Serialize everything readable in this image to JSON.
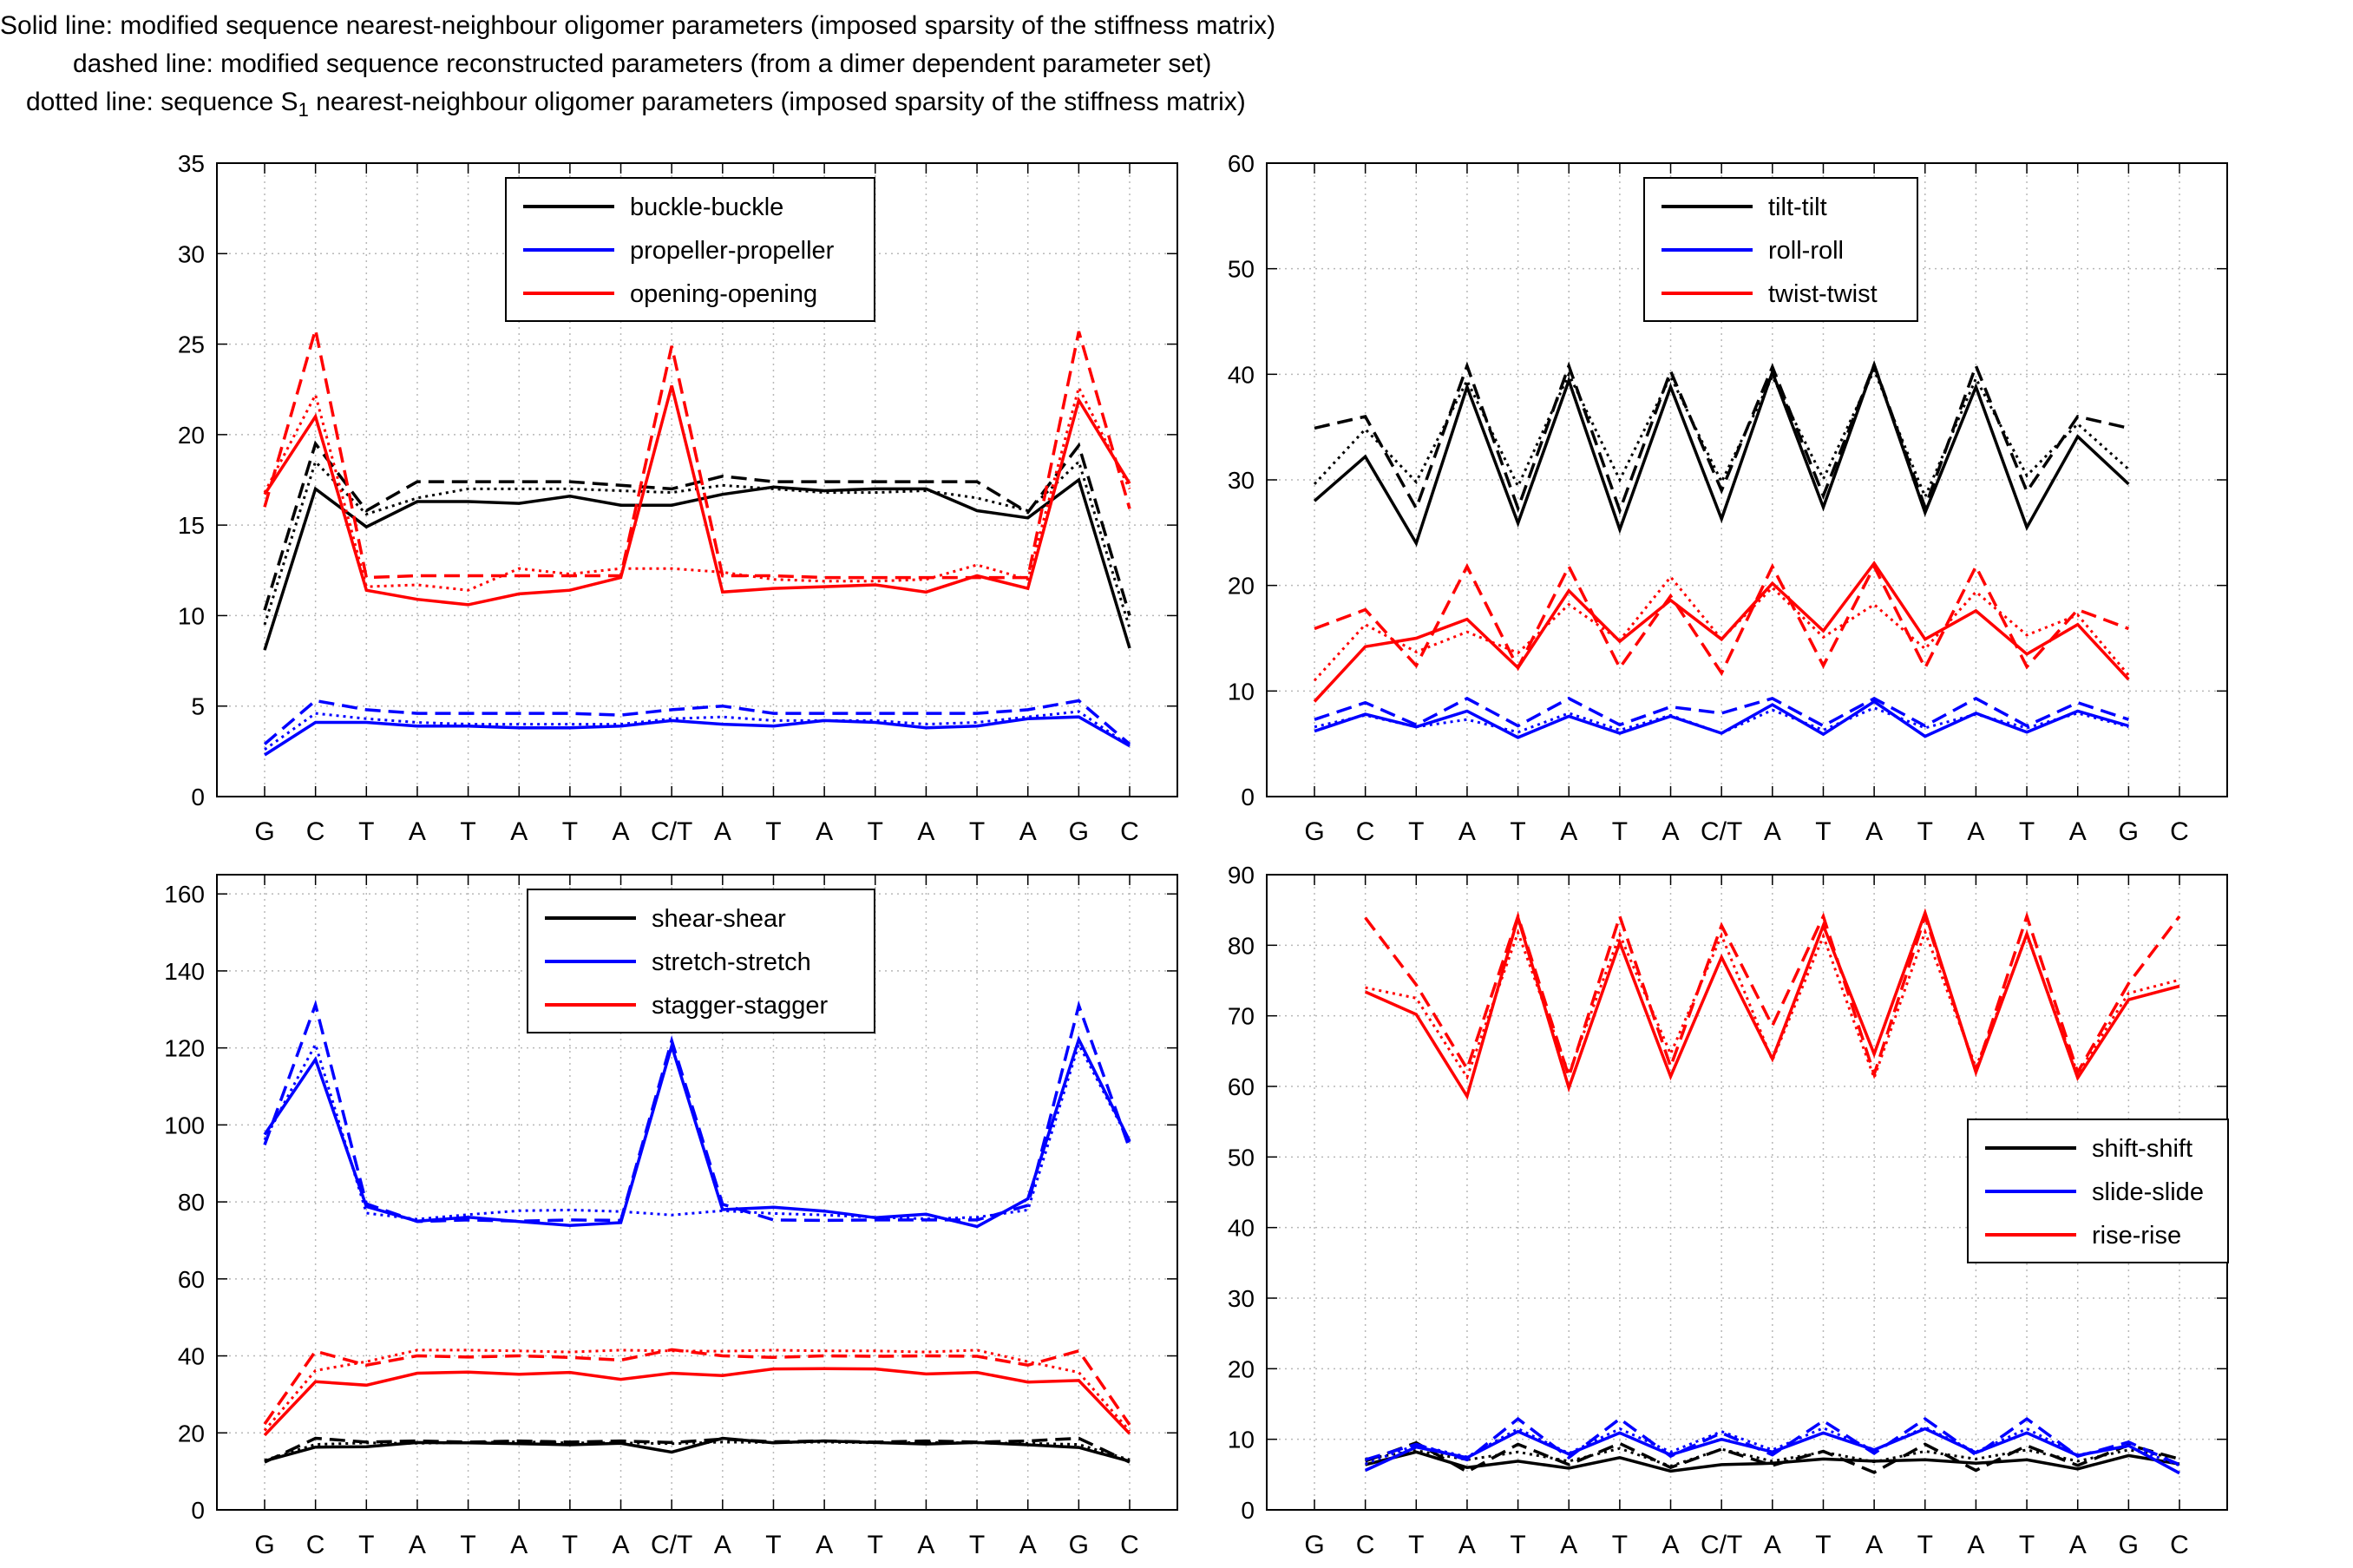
{
  "notes": {
    "solid": "Solid line: modified sequence nearest-neighbour oligomer parameters (imposed sparsity of the stiffness matrix)",
    "dashed": "dashed line: modified sequence reconstructed parameters (from a dimer dependent parameter set)",
    "dotted_before_sub": "dotted line: sequence S",
    "dotted_sub": "1",
    "dotted_after_sub": " nearest-neighbour oligomer parameters (imposed sparsity of the stiffness matrix)"
  },
  "colors": {
    "black": "#000000",
    "blue": "#0000ff",
    "red": "#ff0000",
    "grid": "#b8b8b8"
  },
  "chart_data": [
    {
      "type": "line",
      "categories": [
        "G",
        "C",
        "T",
        "A",
        "T",
        "A",
        "T",
        "A",
        "C/T",
        "A",
        "T",
        "A",
        "T",
        "A",
        "T",
        "A",
        "G",
        "C"
      ],
      "ylim": [
        0,
        35
      ],
      "yticks": [
        0,
        5,
        10,
        15,
        20,
        25,
        30,
        35
      ],
      "grid": true,
      "legend_position": "top-center",
      "legend": [
        "buckle-buckle",
        "propeller-propeller",
        "opening-opening"
      ],
      "series": [
        {
          "name": "buckle-buckle",
          "color": "black",
          "style": "solid",
          "values": [
            8.1,
            17.0,
            14.9,
            16.3,
            16.3,
            16.2,
            16.6,
            16.1,
            16.1,
            16.7,
            17.1,
            16.9,
            17.0,
            17.0,
            15.8,
            15.4,
            17.5,
            8.2
          ]
        },
        {
          "name": "buckle-buckle",
          "color": "black",
          "style": "dashed",
          "values": [
            10.3,
            19.5,
            15.8,
            17.4,
            17.4,
            17.4,
            17.4,
            17.2,
            17.0,
            17.7,
            17.4,
            17.4,
            17.4,
            17.4,
            17.4,
            15.7,
            19.4,
            10.0
          ]
        },
        {
          "name": "buckle-buckle",
          "color": "black",
          "style": "dotted",
          "values": [
            9.5,
            18.5,
            15.6,
            16.5,
            17.0,
            17.0,
            17.0,
            16.9,
            16.8,
            17.2,
            17.0,
            16.8,
            16.8,
            16.9,
            16.5,
            15.8,
            18.5,
            9.3
          ]
        },
        {
          "name": "propeller-propeller",
          "color": "blue",
          "style": "solid",
          "values": [
            2.3,
            4.1,
            4.1,
            3.9,
            3.9,
            3.8,
            3.8,
            3.9,
            4.2,
            4.0,
            3.9,
            4.2,
            4.1,
            3.8,
            3.9,
            4.3,
            4.4,
            2.8
          ]
        },
        {
          "name": "propeller-propeller",
          "color": "blue",
          "style": "dashed",
          "values": [
            2.9,
            5.3,
            4.8,
            4.6,
            4.6,
            4.6,
            4.6,
            4.5,
            4.8,
            5.0,
            4.6,
            4.6,
            4.6,
            4.6,
            4.6,
            4.8,
            5.3,
            2.9
          ]
        },
        {
          "name": "propeller-propeller",
          "color": "blue",
          "style": "dotted",
          "values": [
            2.6,
            4.6,
            4.3,
            4.1,
            4.0,
            4.0,
            4.0,
            4.0,
            4.3,
            4.4,
            4.2,
            4.2,
            4.2,
            4.0,
            4.1,
            4.4,
            4.7,
            2.8
          ]
        },
        {
          "name": "opening-opening",
          "color": "red",
          "style": "solid",
          "values": [
            16.7,
            21.0,
            11.4,
            10.9,
            10.6,
            11.2,
            11.4,
            12.1,
            22.7,
            11.3,
            11.5,
            11.6,
            11.7,
            11.3,
            12.2,
            11.5,
            21.9,
            17.3
          ]
        },
        {
          "name": "opening-opening",
          "color": "red",
          "style": "dashed",
          "values": [
            16.0,
            25.8,
            12.1,
            12.2,
            12.2,
            12.2,
            12.2,
            12.2,
            24.9,
            12.2,
            12.2,
            12.1,
            12.1,
            12.1,
            12.1,
            12.1,
            25.7,
            15.9
          ]
        },
        {
          "name": "opening-opening",
          "color": "red",
          "style": "dotted",
          "values": [
            16.8,
            22.2,
            11.6,
            11.7,
            11.4,
            12.6,
            12.3,
            12.6,
            12.6,
            12.4,
            12.0,
            11.9,
            11.9,
            12.0,
            12.8,
            12.0,
            22.6,
            17.0
          ]
        }
      ]
    },
    {
      "type": "line",
      "categories": [
        "G",
        "C",
        "T",
        "A",
        "T",
        "A",
        "T",
        "A",
        "C/T",
        "A",
        "T",
        "A",
        "T",
        "A",
        "T",
        "A",
        "G",
        "C"
      ],
      "ylim": [
        0,
        60
      ],
      "yticks": [
        0,
        10,
        20,
        30,
        40,
        50,
        60
      ],
      "grid": true,
      "legend_position": "top-center",
      "legend": [
        "tilt-tilt",
        "roll-roll",
        "twist-twist"
      ],
      "series": [
        {
          "name": "tilt-tilt",
          "color": "black",
          "style": "solid",
          "values": [
            28.0,
            32.2,
            24.0,
            38.8,
            25.9,
            39.4,
            25.3,
            38.8,
            26.3,
            40.2,
            27.4,
            40.9,
            26.9,
            38.8,
            25.5,
            34.1,
            29.6,
            null
          ]
        },
        {
          "name": "tilt-tilt",
          "color": "black",
          "style": "dashed",
          "values": [
            34.9,
            36.0,
            27.3,
            40.8,
            27.3,
            40.8,
            27.1,
            40.3,
            29.0,
            40.7,
            28.5,
            40.9,
            27.4,
            40.8,
            28.9,
            36.0,
            34.9,
            null
          ]
        },
        {
          "name": "tilt-tilt",
          "color": "black",
          "style": "dotted",
          "values": [
            29.6,
            34.8,
            29.8,
            39.4,
            29.4,
            40.0,
            30.0,
            39.8,
            29.8,
            39.8,
            30.1,
            40.4,
            28.4,
            39.6,
            30.4,
            35.3,
            31.0,
            null
          ]
        },
        {
          "name": "roll-roll",
          "color": "blue",
          "style": "solid",
          "values": [
            6.2,
            7.8,
            6.6,
            8.1,
            5.6,
            7.6,
            6.0,
            7.6,
            6.0,
            8.7,
            5.9,
            9.0,
            5.7,
            7.9,
            6.1,
            8.1,
            6.7,
            null
          ]
        },
        {
          "name": "roll-roll",
          "color": "blue",
          "style": "dashed",
          "values": [
            7.3,
            8.9,
            6.8,
            9.3,
            6.7,
            9.3,
            6.8,
            8.5,
            7.9,
            9.3,
            6.7,
            9.3,
            6.7,
            9.3,
            6.7,
            8.9,
            7.3,
            null
          ]
        },
        {
          "name": "roll-roll",
          "color": "blue",
          "style": "dotted",
          "values": [
            6.6,
            7.7,
            6.6,
            7.3,
            6.1,
            7.9,
            6.3,
            7.7,
            6.0,
            8.2,
            6.3,
            8.4,
            6.5,
            7.8,
            6.5,
            7.9,
            6.6,
            null
          ]
        },
        {
          "name": "twist-twist",
          "color": "red",
          "style": "solid",
          "values": [
            9.0,
            14.2,
            15.0,
            16.8,
            12.2,
            19.5,
            14.7,
            18.6,
            14.9,
            20.2,
            15.7,
            22.1,
            14.9,
            17.6,
            13.5,
            16.3,
            11.1,
            null
          ]
        },
        {
          "name": "twist-twist",
          "color": "red",
          "style": "dashed",
          "values": [
            15.9,
            17.7,
            12.4,
            21.8,
            12.2,
            21.8,
            12.2,
            19.0,
            11.7,
            21.8,
            12.4,
            21.8,
            12.2,
            21.8,
            12.3,
            17.7,
            15.9,
            null
          ]
        },
        {
          "name": "twist-twist",
          "color": "red",
          "style": "dotted",
          "values": [
            11.0,
            16.3,
            13.7,
            15.6,
            13.6,
            18.2,
            14.8,
            20.8,
            14.9,
            19.8,
            15.1,
            18.2,
            14.0,
            19.4,
            15.3,
            17.2,
            11.5,
            null
          ]
        }
      ]
    },
    {
      "type": "line",
      "categories": [
        "G",
        "C",
        "T",
        "A",
        "T",
        "A",
        "T",
        "A",
        "C/T",
        "A",
        "T",
        "A",
        "T",
        "A",
        "T",
        "A",
        "G",
        "C"
      ],
      "ylim": [
        0,
        165
      ],
      "yticks": [
        0,
        20,
        40,
        60,
        80,
        100,
        120,
        140,
        160
      ],
      "grid": true,
      "legend_position": "top-center",
      "legend": [
        "shear-shear",
        "stretch-stretch",
        "stagger-stagger"
      ],
      "series": [
        {
          "name": "shear-shear",
          "color": "black",
          "style": "solid",
          "values": [
            12.7,
            16.3,
            16.4,
            17.5,
            17.4,
            17.2,
            16.9,
            17.3,
            15.0,
            18.6,
            17.4,
            17.9,
            17.5,
            17.1,
            17.5,
            16.9,
            16.2,
            12.6
          ]
        },
        {
          "name": "shear-shear",
          "color": "black",
          "style": "dashed",
          "values": [
            12.4,
            18.6,
            17.6,
            17.9,
            17.6,
            17.9,
            17.6,
            17.9,
            17.5,
            18.4,
            17.7,
            17.9,
            17.6,
            17.9,
            17.6,
            17.9,
            18.6,
            12.4
          ]
        },
        {
          "name": "shear-shear",
          "color": "black",
          "style": "dotted",
          "values": [
            12.9,
            17.0,
            17.4,
            17.3,
            17.5,
            17.7,
            17.4,
            17.4,
            17.2,
            17.6,
            17.5,
            17.6,
            17.4,
            17.5,
            17.4,
            17.3,
            17.0,
            13.0
          ]
        },
        {
          "name": "stretch-stretch",
          "color": "blue",
          "style": "solid",
          "values": [
            97.5,
            117.0,
            78.8,
            75.0,
            76.0,
            74.9,
            73.9,
            74.6,
            120.5,
            78.0,
            78.6,
            77.6,
            75.9,
            76.8,
            73.6,
            80.8,
            122.2,
            95.8
          ]
        },
        {
          "name": "stretch-stretch",
          "color": "blue",
          "style": "dashed",
          "values": [
            94.8,
            131.2,
            79.5,
            74.9,
            75.3,
            75.0,
            75.3,
            75.2,
            121.9,
            79.4,
            75.3,
            75.2,
            75.3,
            75.3,
            75.3,
            79.1,
            131.0,
            93.8
          ]
        },
        {
          "name": "stretch-stretch",
          "color": "blue",
          "style": "dotted",
          "values": [
            96.1,
            120.9,
            77.1,
            75.5,
            76.7,
            77.7,
            77.9,
            77.5,
            76.6,
            77.7,
            77.0,
            76.6,
            76.0,
            75.6,
            76.0,
            77.9,
            120.9,
            95.6
          ]
        },
        {
          "name": "stagger-stagger",
          "color": "red",
          "style": "solid",
          "values": [
            19.4,
            33.3,
            32.4,
            35.5,
            35.8,
            35.2,
            35.7,
            33.9,
            35.5,
            34.9,
            36.6,
            36.7,
            36.6,
            35.3,
            35.7,
            33.2,
            33.6,
            19.8
          ]
        },
        {
          "name": "stagger-stagger",
          "color": "red",
          "style": "dashed",
          "values": [
            22.3,
            41.2,
            37.6,
            40.0,
            39.7,
            40.0,
            39.6,
            38.9,
            41.6,
            40.0,
            39.6,
            40.0,
            39.9,
            40.0,
            39.9,
            37.6,
            41.3,
            22.1
          ]
        },
        {
          "name": "stagger-stagger",
          "color": "red",
          "style": "dotted",
          "values": [
            20.6,
            36.2,
            38.5,
            41.5,
            41.5,
            41.3,
            41.0,
            41.5,
            41.3,
            41.2,
            41.5,
            41.3,
            41.3,
            41.0,
            41.5,
            38.5,
            35.7,
            20.5
          ]
        }
      ]
    },
    {
      "type": "line",
      "categories": [
        "G",
        "C",
        "T",
        "A",
        "T",
        "A",
        "T",
        "A",
        "C/T",
        "A",
        "T",
        "A",
        "T",
        "A",
        "T",
        "A",
        "G",
        "C"
      ],
      "ylim": [
        0,
        90
      ],
      "yticks": [
        0,
        10,
        20,
        30,
        40,
        50,
        60,
        70,
        80,
        90
      ],
      "grid": true,
      "legend_position": "center-right",
      "legend": [
        "shift-shift",
        "slide-slide",
        "rise-rise"
      ],
      "series": [
        {
          "name": "shift-shift",
          "color": "black",
          "style": "solid",
          "values": [
            null,
            6.4,
            8.2,
            6.0,
            6.9,
            5.9,
            7.4,
            5.5,
            6.4,
            6.6,
            7.2,
            6.9,
            7.1,
            6.6,
            7.1,
            5.8,
            7.7,
            6.5
          ]
        },
        {
          "name": "shift-shift",
          "color": "black",
          "style": "dashed",
          "values": [
            null,
            6.9,
            9.5,
            5.4,
            9.3,
            6.4,
            9.4,
            6.0,
            8.6,
            6.3,
            8.3,
            5.3,
            9.3,
            5.6,
            9.1,
            6.3,
            9.2,
            7.2
          ]
        },
        {
          "name": "shift-shift",
          "color": "black",
          "style": "dotted",
          "values": [
            null,
            7.2,
            8.4,
            7.1,
            8.2,
            6.9,
            8.7,
            6.2,
            8.6,
            6.9,
            8.2,
            6.8,
            8.3,
            7.2,
            8.5,
            6.9,
            8.5,
            7.3
          ]
        },
        {
          "name": "slide-slide",
          "color": "blue",
          "style": "solid",
          "values": [
            null,
            5.6,
            8.9,
            7.4,
            11.1,
            7.9,
            10.9,
            7.8,
            10.0,
            8.2,
            10.9,
            8.5,
            11.5,
            8.1,
            10.9,
            7.7,
            9.1,
            5.2
          ]
        },
        {
          "name": "slide-slide",
          "color": "blue",
          "style": "dashed",
          "values": [
            null,
            7.1,
            9.3,
            7.1,
            12.9,
            7.4,
            12.9,
            7.6,
            10.9,
            7.8,
            12.6,
            8.0,
            12.9,
            7.8,
            12.9,
            7.6,
            9.6,
            6.4
          ]
        },
        {
          "name": "slide-slide",
          "color": "blue",
          "style": "dotted",
          "values": [
            null,
            6.5,
            9.2,
            7.5,
            11.5,
            8.0,
            11.5,
            8.2,
            11.1,
            8.5,
            11.6,
            8.5,
            11.7,
            8.2,
            11.5,
            7.8,
            9.0,
            6.3
          ]
        },
        {
          "name": "rise-rise",
          "color": "red",
          "style": "solid",
          "values": [
            null,
            73.4,
            70.2,
            58.6,
            83.9,
            59.8,
            80.4,
            61.4,
            78.3,
            63.9,
            82.8,
            64.6,
            84.6,
            62.0,
            81.6,
            61.2,
            72.3,
            74.2
          ]
        },
        {
          "name": "rise-rise",
          "color": "red",
          "style": "dashed",
          "values": [
            null,
            83.9,
            74.4,
            62.5,
            84.1,
            61.4,
            84.1,
            62.8,
            82.8,
            68.6,
            84.1,
            61.7,
            84.1,
            62.1,
            84.1,
            62.0,
            74.6,
            84.1
          ]
        },
        {
          "name": "rise-rise",
          "color": "red",
          "style": "dotted",
          "values": [
            null,
            74.0,
            72.5,
            61.3,
            81.8,
            61.8,
            81.5,
            64.6,
            81.4,
            63.7,
            81.3,
            61.2,
            81.9,
            62.7,
            81.4,
            61.8,
            73.2,
            75.1
          ]
        }
      ]
    }
  ]
}
